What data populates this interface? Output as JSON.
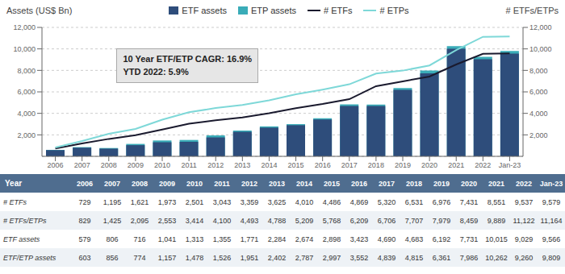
{
  "chart_data": {
    "type": "bar",
    "categories": [
      "2006",
      "2007",
      "2008",
      "2009",
      "2010",
      "2011",
      "2012",
      "2013",
      "2014",
      "2015",
      "2016",
      "2017",
      "2018",
      "2019",
      "2020",
      "2021",
      "2022",
      "Jan-23"
    ],
    "y_label": "Assets (US$ Bn)",
    "y2_label": "# ETFs/ETPs",
    "annotation": "10 Year ETF/ETP CAGR: 16.9%\nYTD 2022: 5.9%",
    "series": [
      {
        "name": "ETF assets",
        "type": "bar",
        "color": "#2E4D7B",
        "values": [
          579,
          806,
          716,
          1041,
          1313,
          1355,
          1771,
          2284,
          2674,
          2898,
          3423,
          4690,
          4683,
          6192,
          7731,
          10015,
          9029,
          9566
        ]
      },
      {
        "name": "ETP assets",
        "type": "bar",
        "color": "#3AACB8",
        "values": [
          603,
          856,
          774,
          1157,
          1478,
          1526,
          1951,
          2402,
          2787,
          2997,
          3552,
          4839,
          4815,
          6361,
          7986,
          10262,
          9260,
          9809
        ]
      },
      {
        "name": "# ETFs",
        "type": "line",
        "axis": "y2",
        "color": "#1A1A2E",
        "values": [
          729,
          1195,
          1621,
          1973,
          2501,
          3043,
          3359,
          3625,
          4010,
          4486,
          4869,
          5320,
          6531,
          6976,
          7431,
          8551,
          9537,
          9579
        ]
      },
      {
        "name": "# ETPs",
        "type": "line",
        "axis": "y2",
        "color": "#7ED8D8",
        "values": [
          829,
          1425,
          2095,
          2553,
          3414,
          4100,
          4493,
          4788,
          5209,
          5768,
          6209,
          6706,
          7707,
          7979,
          8459,
          9889,
          11122,
          11164
        ]
      }
    ],
    "ylim": [
      0,
      12000
    ],
    "yticks": [
      {
        "value": 2000,
        "label": "2,000"
      },
      {
        "value": 4000,
        "label": "4,000"
      },
      {
        "value": 6000,
        "label": "6,000"
      },
      {
        "value": 8000,
        "label": "8,000"
      },
      {
        "value": 10000,
        "label": "10,000"
      },
      {
        "value": 12000,
        "label": "12,000"
      }
    ],
    "y2lim": [
      0,
      12000
    ],
    "y2ticks": [
      {
        "value": 2000,
        "label": "2,000"
      },
      {
        "value": 4000,
        "label": "4,000"
      },
      {
        "value": 6000,
        "label": "6,000"
      },
      {
        "value": 8000,
        "label": "8,000"
      },
      {
        "value": 10000,
        "label": "10,000"
      },
      {
        "value": 12000,
        "label": "12,000"
      }
    ],
    "grid": true,
    "legend": "top",
    "table": {
      "header": "Year",
      "rows": [
        {
          "label": "# ETFs",
          "values": [
            729,
            1195,
            1621,
            1973,
            2501,
            3043,
            3359,
            3625,
            4010,
            4486,
            4869,
            5320,
            6531,
            6976,
            7431,
            8551,
            9537,
            9579
          ]
        },
        {
          "label": "# ETFs/ETPs",
          "values": [
            829,
            1425,
            2095,
            2553,
            3414,
            4100,
            4493,
            4788,
            5209,
            5768,
            6209,
            6706,
            7707,
            7979,
            8459,
            9889,
            11122,
            11164
          ]
        },
        {
          "label": "ETF assets",
          "values": [
            579,
            806,
            716,
            1041,
            1313,
            1355,
            1771,
            2284,
            2674,
            2898,
            3423,
            4690,
            4683,
            6192,
            7731,
            10015,
            9029,
            9566
          ]
        },
        {
          "label": "ETF/ETP assets",
          "values": [
            603,
            856,
            774,
            1157,
            1478,
            1526,
            1951,
            2402,
            2787,
            2997,
            3552,
            4839,
            4815,
            6361,
            7986,
            10262,
            9260,
            9809
          ]
        }
      ]
    }
  }
}
